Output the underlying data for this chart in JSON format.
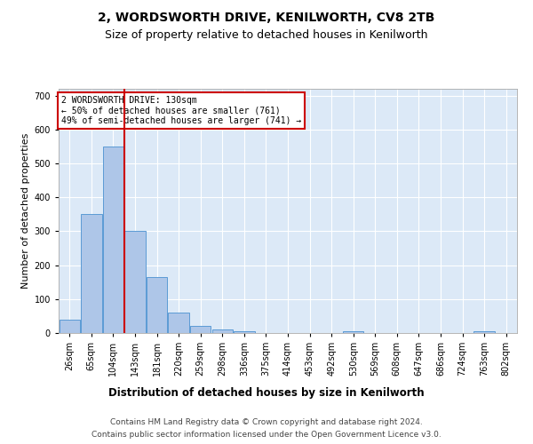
{
  "title1": "2, WORDSWORTH DRIVE, KENILWORTH, CV8 2TB",
  "title2": "Size of property relative to detached houses in Kenilworth",
  "xlabel": "Distribution of detached houses by size in Kenilworth",
  "ylabel": "Number of detached properties",
  "categories": [
    "26sqm",
    "65sqm",
    "104sqm",
    "143sqm",
    "181sqm",
    "220sqm",
    "259sqm",
    "298sqm",
    "336sqm",
    "375sqm",
    "414sqm",
    "453sqm",
    "492sqm",
    "530sqm",
    "569sqm",
    "608sqm",
    "647sqm",
    "686sqm",
    "724sqm",
    "763sqm",
    "802sqm"
  ],
  "values": [
    40,
    350,
    550,
    300,
    165,
    60,
    22,
    10,
    5,
    0,
    0,
    0,
    0,
    5,
    0,
    0,
    0,
    0,
    0,
    5,
    0
  ],
  "bar_color": "#aec6e8",
  "bar_edge_color": "#5b9bd5",
  "red_line_x": 2.5,
  "annotation_text": "2 WORDSWORTH DRIVE: 130sqm\n← 50% of detached houses are smaller (761)\n49% of semi-detached houses are larger (741) →",
  "annotation_box_color": "#ffffff",
  "annotation_edge_color": "#cc0000",
  "ylim": [
    0,
    720
  ],
  "yticks": [
    0,
    100,
    200,
    300,
    400,
    500,
    600,
    700
  ],
  "footer1": "Contains HM Land Registry data © Crown copyright and database right 2024.",
  "footer2": "Contains public sector information licensed under the Open Government Licence v3.0.",
  "plot_bg_color": "#dce9f7",
  "fig_bg_color": "#ffffff",
  "grid_color": "#ffffff",
  "title1_fontsize": 10,
  "title2_fontsize": 9,
  "xlabel_fontsize": 8.5,
  "ylabel_fontsize": 8,
  "tick_fontsize": 7,
  "footer_fontsize": 6.5,
  "annot_fontsize": 7
}
